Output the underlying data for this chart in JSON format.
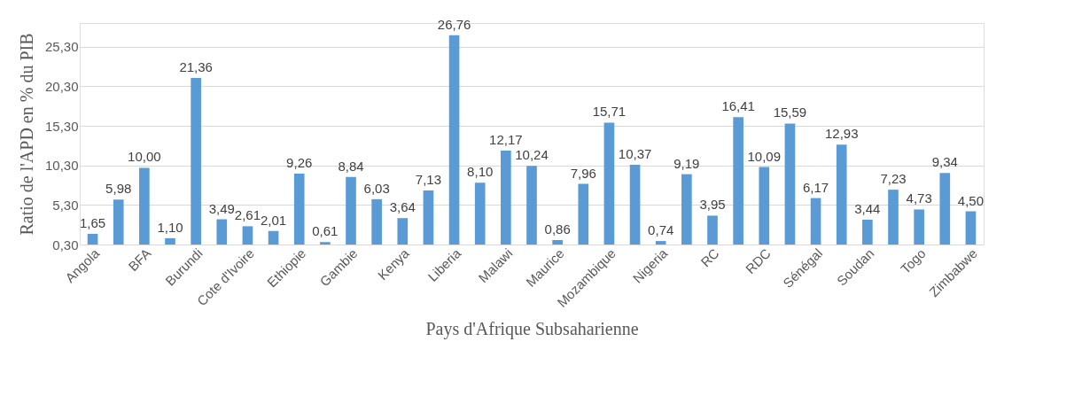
{
  "chart_data": {
    "type": "bar",
    "xlabel": "Pays d'Afrique Subsaharienne",
    "ylabel": "Ratio de l'APD en % du PIB",
    "categories": [
      "Angola",
      null,
      "BFA",
      null,
      "Burundi",
      null,
      "Cote d'Ivoire",
      null,
      "Ethiopie",
      null,
      "Gambie",
      null,
      "Kenya",
      null,
      "Liberia",
      null,
      "Malawi",
      null,
      "Maurice",
      null,
      "Mozambique",
      null,
      "Nigeria",
      null,
      "RC",
      null,
      "RDC",
      null,
      "Sénégal",
      null,
      "Soudan",
      null,
      "Togo",
      null,
      "Zimbabwe"
    ],
    "values": [
      1.65,
      5.98,
      10.0,
      1.1,
      21.36,
      3.49,
      2.61,
      2.01,
      9.26,
      0.61,
      8.84,
      6.03,
      3.64,
      7.13,
      26.76,
      8.1,
      12.17,
      10.24,
      0.86,
      7.96,
      15.71,
      10.37,
      0.74,
      9.19,
      3.95,
      16.41,
      10.09,
      15.59,
      6.17,
      12.93,
      3.44,
      7.23,
      4.73,
      9.34,
      4.5
    ],
    "value_labels": [
      "1,65",
      "5,98",
      "10,00",
      "1,10",
      "21,36",
      "3,49",
      "2,61",
      "2,01",
      "9,26",
      "0,61",
      "8,84",
      "6,03",
      "3,64",
      "7,13",
      "26,76",
      "8,10",
      "12,17",
      "10,24",
      "0,86",
      "7,96",
      "15,71",
      "10,37",
      "0,74",
      "9,19",
      "3,95",
      "16,41",
      "10,09",
      "15,59",
      "6,17",
      "12,93",
      "3,44",
      "7,23",
      "4,73",
      "9,34",
      "4,50"
    ],
    "color": "#5b9bd5",
    "grid": "y",
    "ylim": [
      0.3,
      28.3
    ],
    "yticks": [
      {
        "value": 0.3,
        "label": "0,30"
      },
      {
        "value": 5.3,
        "label": "5,30"
      },
      {
        "value": 10.3,
        "label": "10,30"
      },
      {
        "value": 15.3,
        "label": "15,30"
      },
      {
        "value": 20.3,
        "label": "20,30"
      },
      {
        "value": 25.3,
        "label": "25,30"
      }
    ]
  }
}
